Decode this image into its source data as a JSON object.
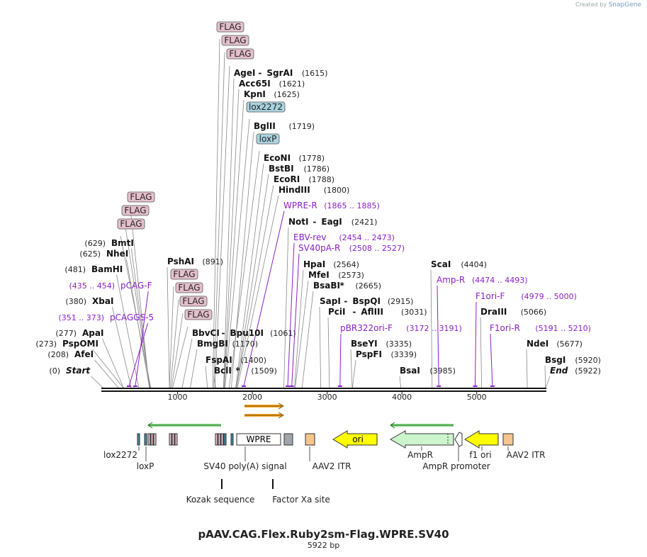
{
  "title": "pAAV.CAG.Flex.Ruby2sm-Flag.WPRE.SV40",
  "length_label": "5922 bp",
  "credit_prefix": "Created by",
  "credit_brand": "SnapGene",
  "length_bp": 5922,
  "colors": {
    "primer": "#8b1fc8",
    "flag_fill": "#e5bfcc",
    "lox_fill": "#a9d3e0",
    "ori_fill": "#ffff00",
    "ampr_fill": "#ccf5cc",
    "orange_arrow": "#f5a623",
    "green_line": "#2f9e2f"
  },
  "ticks": [
    {
      "pos": 1000,
      "label": "1000"
    },
    {
      "pos": 2000,
      "label": "2000"
    },
    {
      "pos": 3000,
      "label": "3000"
    },
    {
      "pos": 4000,
      "label": "4000"
    },
    {
      "pos": 5000,
      "label": "5000"
    }
  ],
  "enzymes": [
    {
      "name": "Start",
      "pos": "(0)",
      "bp": 0,
      "italic": true
    },
    {
      "name": "AfeI",
      "pos": "(208)",
      "bp": 208
    },
    {
      "name": "PspOMI",
      "pos": "(273)",
      "bp": 273
    },
    {
      "name": "ApaI",
      "pos": "(277)",
      "bp": 277
    },
    {
      "name": "XbaI",
      "pos": "(380)",
      "bp": 380
    },
    {
      "name": "BamHI",
      "pos": "(481)",
      "bp": 481
    },
    {
      "name": "NheI",
      "pos": "(625)",
      "bp": 625
    },
    {
      "name": "BmtI",
      "pos": "(629)",
      "bp": 629
    },
    {
      "name": "PshAI",
      "pos": "(891)",
      "bp": 891
    },
    {
      "name": "BbvCI",
      "name2": "Bpu10I",
      "pos": "(1061)",
      "bp": 1061
    },
    {
      "name": "BmgBI",
      "pos": "(1170)",
      "bp": 1170
    },
    {
      "name": "FspAI",
      "pos": "(1400)",
      "bp": 1400
    },
    {
      "name": "BclI",
      "star": "*",
      "pos": "(1509)",
      "bp": 1509
    },
    {
      "name": "AgeI",
      "name2": "SgrAI",
      "pos": "(1615)",
      "bp": 1615
    },
    {
      "name": "Acc65I",
      "pos": "(1621)",
      "bp": 1621
    },
    {
      "name": "KpnI",
      "pos": "(1625)",
      "bp": 1625
    },
    {
      "name": "BglII",
      "pos": "(1719)",
      "bp": 1719
    },
    {
      "name": "EcoNI",
      "pos": "(1778)",
      "bp": 1778
    },
    {
      "name": "BstBI",
      "pos": "(1786)",
      "bp": 1786
    },
    {
      "name": "EcoRI",
      "pos": "(1788)",
      "bp": 1788
    },
    {
      "name": "HindIII",
      "pos": "(1800)",
      "bp": 1800
    },
    {
      "name": "NotI",
      "name2": "EagI",
      "pos": "(2421)",
      "bp": 2421
    },
    {
      "name": "HpaI",
      "pos": "(2564)",
      "bp": 2564
    },
    {
      "name": "MfeI",
      "pos": "(2573)",
      "bp": 2573
    },
    {
      "name": "BsaBI",
      "star": "*",
      "pos": "(2665)",
      "bp": 2665
    },
    {
      "name": "SapI",
      "name2": "BspQI",
      "pos": "(2915)",
      "bp": 2915
    },
    {
      "name": "PciI",
      "name2": "AflIII",
      "pos": "(3031)",
      "bp": 3031
    },
    {
      "name": "BseYI",
      "pos": "(3335)",
      "bp": 3335
    },
    {
      "name": "PspFI",
      "pos": "(3339)",
      "bp": 3339
    },
    {
      "name": "BsaI",
      "pos": "(3985)",
      "bp": 3985
    },
    {
      "name": "ScaI",
      "pos": "(4404)",
      "bp": 4404
    },
    {
      "name": "DraIII",
      "pos": "(5066)",
      "bp": 5066
    },
    {
      "name": "NdeI",
      "pos": "(5677)",
      "bp": 5677
    },
    {
      "name": "BsgI",
      "pos": "(5920)",
      "bp": 5920
    },
    {
      "name": "End",
      "pos": "(5922)",
      "bp": 5922,
      "italic": true
    }
  ],
  "primers": [
    {
      "name": "pCAGGS-5",
      "range": "(351 .. 373)",
      "bp": 351
    },
    {
      "name": "pCAG-F",
      "range": "(435 .. 454)",
      "bp": 435
    },
    {
      "name": "WPRE-R",
      "range": "(1865 .. 1885)",
      "bp": 1885
    },
    {
      "name": "EBV-rev",
      "range": "(2454 .. 2473)",
      "bp": 2473
    },
    {
      "name": "SV40pA-R",
      "range": "(2508 .. 2527)",
      "bp": 2527
    },
    {
      "name": "pBR322ori-F",
      "range": "(3172 .. 3191)",
      "bp": 3172
    },
    {
      "name": "Amp-R",
      "range": "(4474 .. 4493)",
      "bp": 4493
    },
    {
      "name": "F1ori-F",
      "range": "(4979 .. 5000)",
      "bp": 4979
    },
    {
      "name": "F1ori-R",
      "range": "(5191 .. 5210)",
      "bp": 5210
    }
  ],
  "feature_tags": [
    {
      "label": "FLAG",
      "group": "left"
    },
    {
      "label": "FLAG",
      "group": "left"
    },
    {
      "label": "FLAG",
      "group": "left"
    },
    {
      "label": "FLAG",
      "group": "mid"
    },
    {
      "label": "FLAG",
      "group": "mid"
    },
    {
      "label": "FLAG",
      "group": "mid"
    },
    {
      "label": "FLAG",
      "group": "mid"
    },
    {
      "label": "FLAG",
      "group": "top"
    },
    {
      "label": "FLAG",
      "group": "top"
    },
    {
      "label": "FLAG",
      "group": "top"
    },
    {
      "label": "lox2272",
      "group": "lox"
    },
    {
      "label": "loxP",
      "group": "lox"
    }
  ],
  "features": [
    {
      "name": "WPRE",
      "type": "box"
    },
    {
      "name": "ori",
      "type": "arrow-left"
    },
    {
      "name": "f1 ori",
      "type": "arrow-left"
    }
  ],
  "feature_labels": [
    "lox2272",
    "loxP",
    "SV40 poly(A) signal",
    "AAV2 ITR",
    "AmpR",
    "AmpR promoter",
    "f1 ori",
    "AAV2 ITR",
    "Kozak sequence",
    "Factor Xa site"
  ]
}
